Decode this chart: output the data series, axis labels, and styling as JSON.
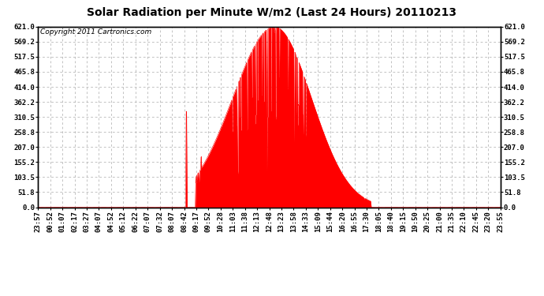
{
  "title": "Solar Radiation per Minute W/m2 (Last 24 Hours) 20110213",
  "copyright": "Copyright 2011 Cartronics.com",
  "bar_color": "#ff0000",
  "background_color": "#ffffff",
  "plot_bg_color": "#ffffff",
  "grid_color": "#aaaaaa",
  "dashed_line_color": "#ff0000",
  "yticks": [
    0.0,
    51.8,
    103.5,
    155.2,
    207.0,
    258.8,
    310.5,
    362.2,
    414.0,
    465.8,
    517.5,
    569.2,
    621.0
  ],
  "ylim": [
    0.0,
    621.0
  ],
  "title_fontsize": 10,
  "copyright_fontsize": 6.5,
  "tick_fontsize": 6.5,
  "x_tick_labels": [
    "23:57",
    "00:52",
    "01:07",
    "02:17",
    "03:27",
    "04:07",
    "04:52",
    "05:12",
    "06:22",
    "07:07",
    "07:32",
    "08:07",
    "08:42",
    "09:17",
    "09:52",
    "10:28",
    "11:03",
    "11:38",
    "12:13",
    "12:48",
    "13:23",
    "13:58",
    "14:33",
    "15:09",
    "15:44",
    "16:20",
    "16:55",
    "17:30",
    "18:05",
    "18:40",
    "19:15",
    "19:50",
    "20:25",
    "21:00",
    "21:35",
    "22:10",
    "22:45",
    "23:20",
    "23:55"
  ],
  "sunrise_minute": 490,
  "sunset_minute": 1035,
  "peak_minute": 735,
  "peak_value": 621.0,
  "sigma_rise": 130,
  "sigma_set": 115
}
